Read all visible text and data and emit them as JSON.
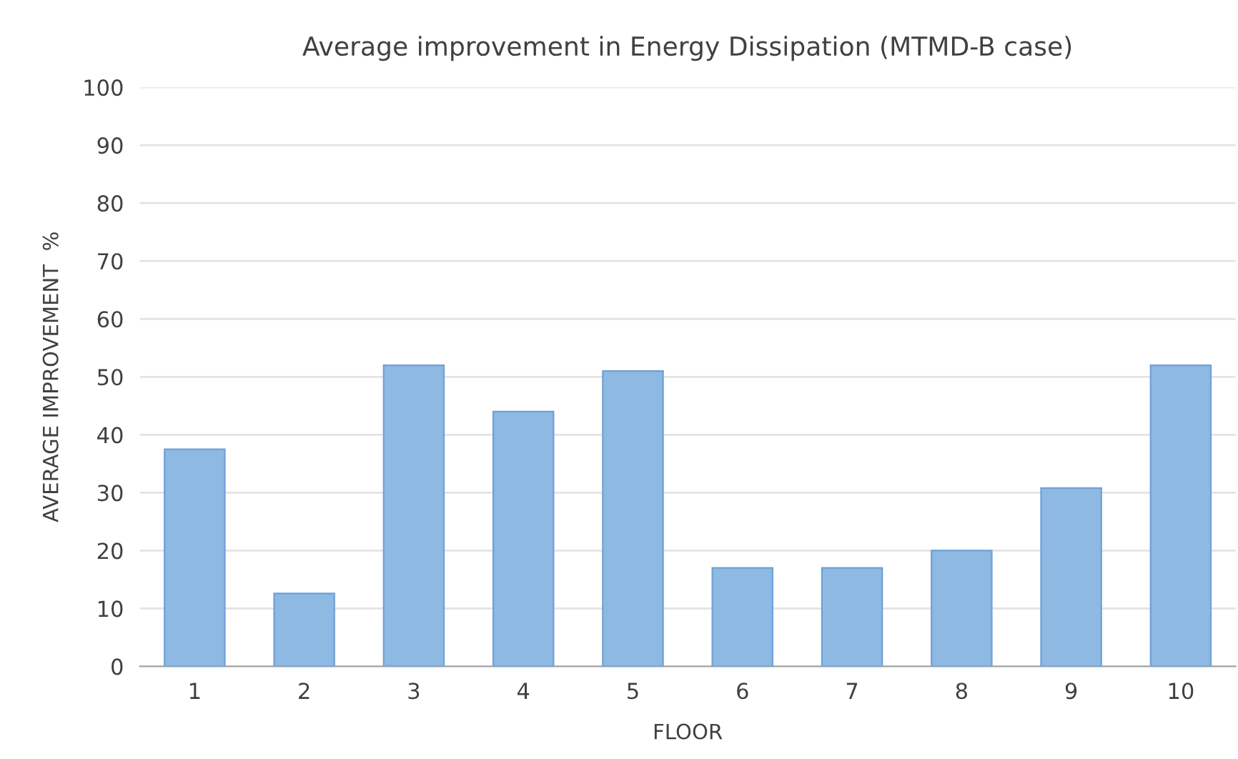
{
  "chart_data": {
    "type": "bar",
    "title": "Average improvement in Energy Dissipation (MTMD-B case)",
    "xlabel": "FLOOR",
    "ylabel": "AVERAGE IMPROVEMENT  %",
    "categories": [
      "1",
      "2",
      "3",
      "4",
      "5",
      "6",
      "7",
      "8",
      "9",
      "10"
    ],
    "values": [
      37.5,
      12.6,
      52,
      44,
      51,
      17,
      17,
      20,
      30.8,
      52
    ],
    "color": "#8db9e3",
    "ylim": [
      0,
      100
    ],
    "yticks": [
      0,
      10,
      20,
      30,
      40,
      50,
      60,
      70,
      80,
      90,
      100
    ],
    "grid": "y",
    "legend": false
  }
}
